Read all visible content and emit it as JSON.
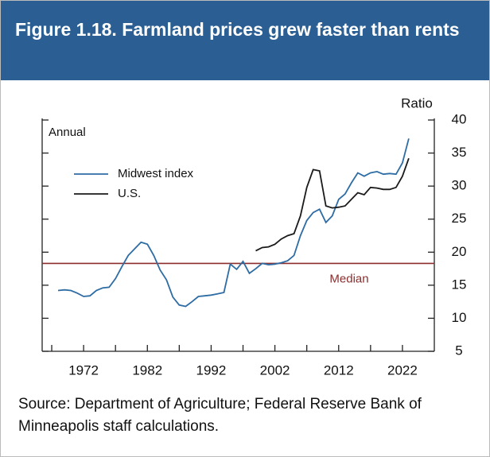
{
  "chart_data": {
    "type": "line",
    "title": "Figure 1.18. Farmland prices grew faster than rents",
    "y_label": "Ratio",
    "annotation": "Annual",
    "source": "Source: Department of Agriculture; Federal Reserve Bank of Minneapolis staff calculations.",
    "x": [
      1968,
      1969,
      1970,
      1971,
      1972,
      1973,
      1974,
      1975,
      1976,
      1977,
      1978,
      1979,
      1980,
      1981,
      1982,
      1983,
      1984,
      1985,
      1986,
      1987,
      1988,
      1989,
      1990,
      1991,
      1992,
      1993,
      1994,
      1995,
      1996,
      1997,
      1998,
      1999,
      2000,
      2001,
      2002,
      2003,
      2004,
      2005,
      2006,
      2007,
      2008,
      2009,
      2010,
      2011,
      2012,
      2013,
      2014,
      2015,
      2016,
      2017,
      2018,
      2019,
      2020,
      2021,
      2022,
      2023
    ],
    "series": [
      {
        "name": "Midwest index",
        "color": "#2e6ca4",
        "values": [
          14.2,
          14.3,
          14.2,
          13.8,
          13.3,
          13.4,
          14.2,
          14.6,
          14.7,
          16.0,
          17.8,
          19.5,
          20.5,
          21.5,
          21.2,
          19.5,
          17.3,
          15.8,
          13.2,
          12.0,
          11.8,
          12.5,
          13.3,
          13.4,
          13.5,
          13.7,
          13.9,
          18.2,
          17.4,
          18.6,
          16.8,
          17.5,
          18.3,
          18.1,
          18.2,
          18.4,
          18.7,
          19.5,
          22.5,
          24.8,
          26.0,
          26.5,
          24.5,
          25.5,
          28.0,
          28.8,
          30.5,
          32.0,
          31.5,
          32.0,
          32.2,
          31.8,
          31.9,
          31.8,
          33.5,
          37.2
        ]
      },
      {
        "name": "U.S.",
        "color": "#1a1a1a",
        "values": [
          null,
          null,
          null,
          null,
          null,
          null,
          null,
          null,
          null,
          null,
          null,
          null,
          null,
          null,
          null,
          null,
          null,
          null,
          null,
          null,
          null,
          null,
          null,
          null,
          null,
          null,
          null,
          null,
          null,
          null,
          null,
          20.2,
          20.7,
          20.8,
          21.2,
          22.0,
          22.5,
          22.8,
          25.5,
          29.8,
          32.5,
          32.3,
          27.0,
          26.7,
          26.8,
          27.0,
          28.0,
          29.0,
          28.7,
          29.8,
          29.7,
          29.5,
          29.5,
          29.8,
          31.5,
          34.2
        ]
      }
    ],
    "median": {
      "value": 18.3,
      "label": "Median",
      "color": "#8b2d2d"
    },
    "xlim": [
      1965.5,
      2027
    ],
    "xticks": [
      1972,
      1982,
      1992,
      2002,
      2012,
      2022
    ],
    "xminor_ticks": [
      1967,
      1977,
      1987,
      1997,
      2007,
      2017
    ],
    "ylim": [
      5,
      40
    ],
    "yticks": [
      5,
      10,
      15,
      20,
      25,
      30,
      35,
      40
    ]
  }
}
